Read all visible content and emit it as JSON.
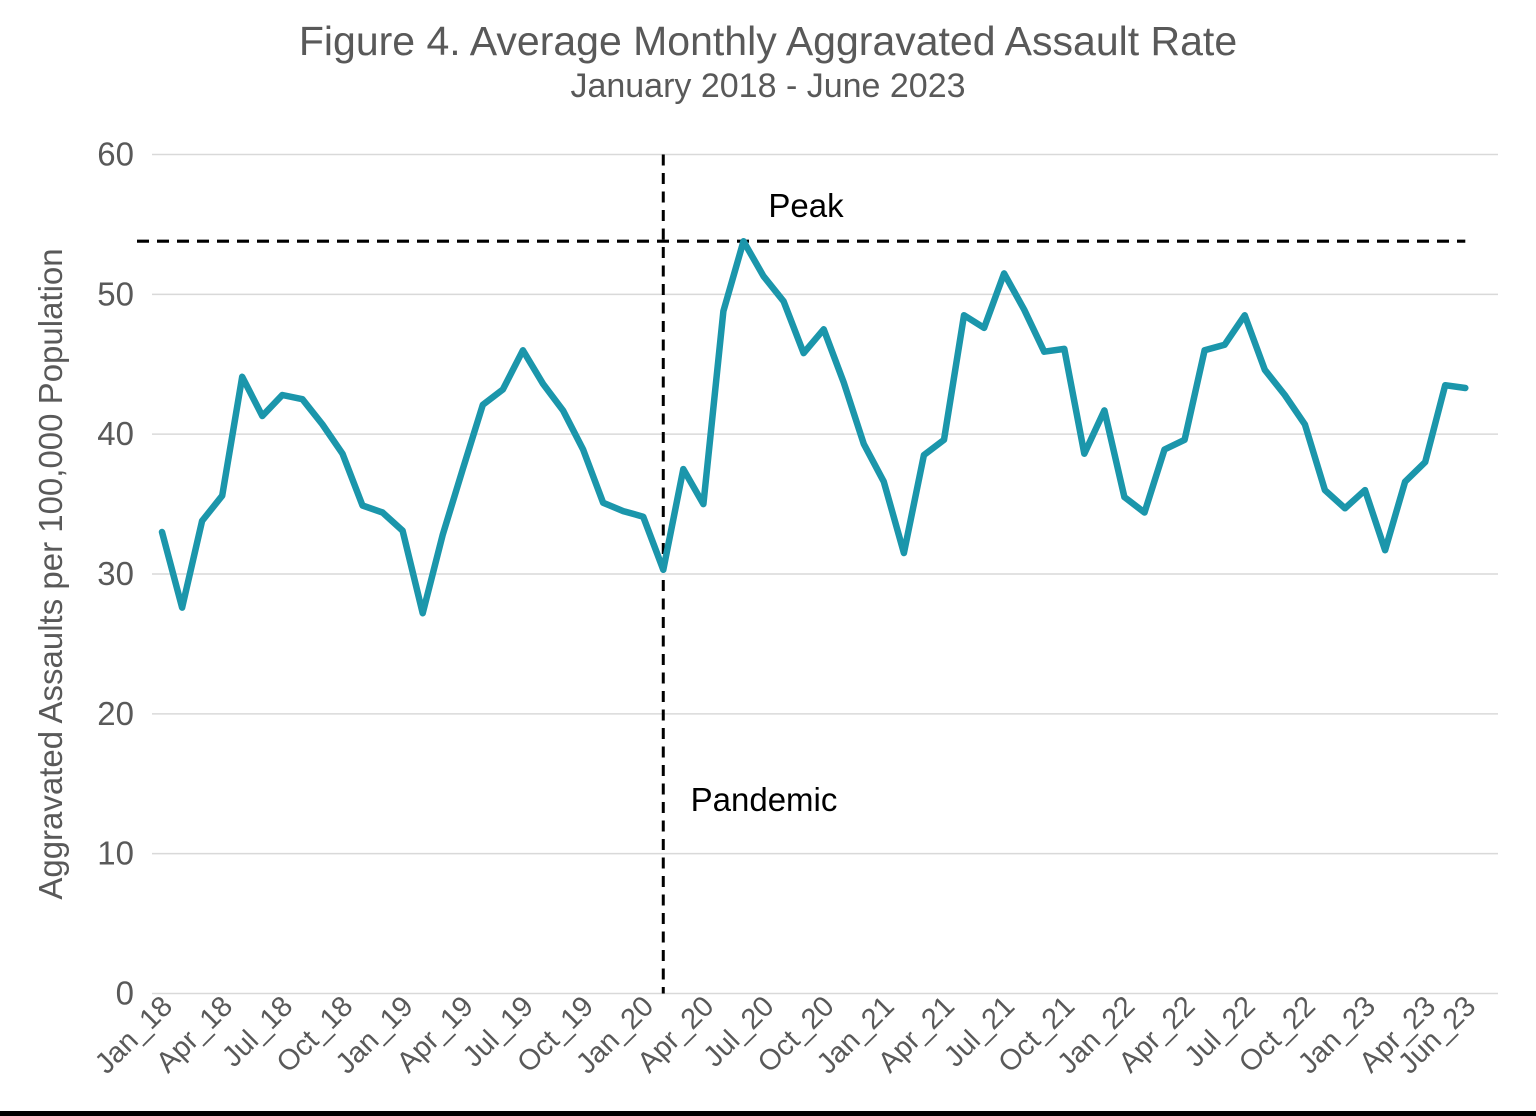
{
  "title": "Figure 4. Average Monthly Aggravated Assault Rate",
  "subtitle": "January 2018 - June 2023",
  "annotations": {
    "peak_label": "Peak",
    "pandemic_label": "Pandemic"
  },
  "colors": {
    "line": "#1b96ab",
    "gridline": "#d9d9d9",
    "axis_text": "#595959",
    "annotation": "#000000"
  },
  "chart_data": {
    "type": "line",
    "title": "Figure 4. Average Monthly Aggravated Assault Rate",
    "subtitle": "January 2018 - June 2023",
    "xlabel": "",
    "ylabel": "Aggravated Assaults per 100,000 Population",
    "ylim": [
      0,
      60
    ],
    "yticks": [
      0,
      10,
      20,
      30,
      40,
      50,
      60
    ],
    "grid": "horizontal",
    "legend": "none",
    "x": [
      "Jan_18",
      "Feb_18",
      "Mar_18",
      "Apr_18",
      "May_18",
      "Jun_18",
      "Jul_18",
      "Aug_18",
      "Sep_18",
      "Oct_18",
      "Nov_18",
      "Dec_18",
      "Jan_19",
      "Feb_19",
      "Mar_19",
      "Apr_19",
      "May_19",
      "Jun_19",
      "Jul_19",
      "Aug_19",
      "Sep_19",
      "Oct_19",
      "Nov_19",
      "Dec_19",
      "Jan_20",
      "Feb_20",
      "Mar_20",
      "Apr_20",
      "May_20",
      "Jun_20",
      "Jul_20",
      "Aug_20",
      "Sep_20",
      "Oct_20",
      "Nov_20",
      "Dec_20",
      "Jan_21",
      "Feb_21",
      "Mar_21",
      "Apr_21",
      "May_21",
      "Jun_21",
      "Jul_21",
      "Aug_21",
      "Sep_21",
      "Oct_21",
      "Nov_21",
      "Dec_21",
      "Jan_22",
      "Feb_22",
      "Mar_22",
      "Apr_22",
      "May_22",
      "Jun_22",
      "Jul_22",
      "Aug_22",
      "Sep_22",
      "Oct_22",
      "Nov_22",
      "Dec_22",
      "Jan_23",
      "Feb_23",
      "Mar_23",
      "Apr_23",
      "May_23",
      "Jun_23"
    ],
    "x_tick_labels": [
      "Jan_18",
      "Apr_18",
      "Jul_18",
      "Oct_18",
      "Jan_19",
      "Apr_19",
      "Jul_19",
      "Oct_19",
      "Jan_20",
      "Apr_20",
      "Jul_20",
      "Oct_20",
      "Jan_21",
      "Apr_21",
      "Jul_21",
      "Oct_21",
      "Jan_22",
      "Apr_22",
      "Jul_22",
      "Oct_22",
      "Jan_23",
      "Apr_23",
      "Jun_23"
    ],
    "series": [
      {
        "name": "Average monthly aggravated assault rate",
        "color": "#1b96ab",
        "values": [
          33.0,
          27.6,
          33.8,
          35.6,
          44.1,
          41.3,
          42.8,
          42.5,
          40.7,
          38.6,
          34.9,
          34.4,
          33.1,
          27.2,
          32.8,
          37.5,
          42.1,
          43.2,
          46.0,
          43.6,
          41.7,
          38.9,
          35.1,
          34.5,
          34.1,
          30.3,
          37.5,
          35.0,
          48.8,
          53.8,
          51.3,
          49.5,
          45.8,
          47.5,
          43.7,
          39.3,
          36.6,
          31.5,
          38.5,
          39.6,
          48.5,
          47.6,
          51.5,
          48.9,
          45.9,
          46.1,
          38.6,
          41.7,
          35.5,
          34.4,
          38.9,
          39.6,
          46.0,
          46.4,
          48.5,
          44.6,
          42.8,
          40.7,
          36.0,
          34.7,
          36.0,
          31.7,
          36.6,
          38.0,
          43.5,
          43.3
        ]
      }
    ],
    "reference_lines": [
      {
        "orientation": "horizontal",
        "label": "Peak",
        "value": 53.8,
        "style": "dashed",
        "color": "#000000"
      },
      {
        "orientation": "vertical",
        "label": "Pandemic",
        "at_month": "Feb_20",
        "style": "dashed",
        "color": "#000000"
      }
    ]
  }
}
